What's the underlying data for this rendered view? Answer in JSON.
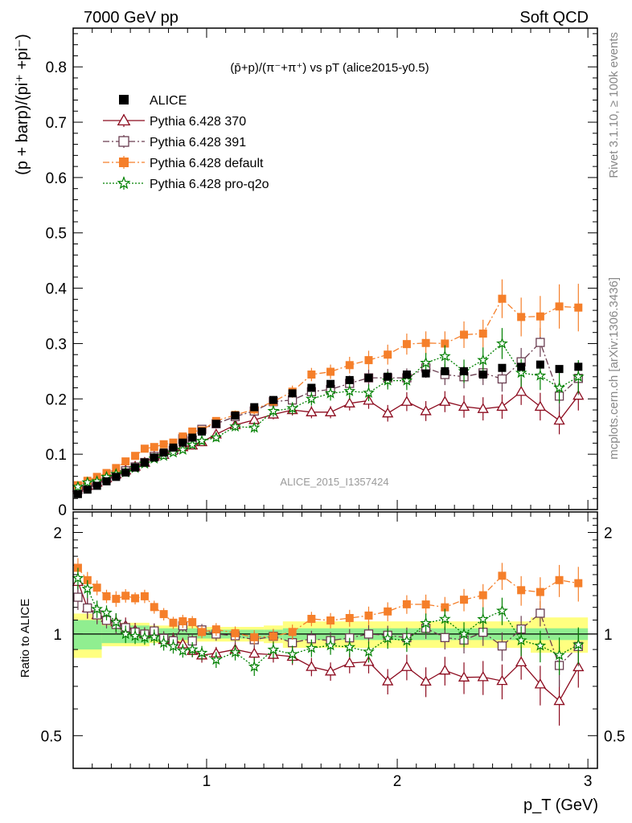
{
  "header": {
    "left": "7000 GeV pp",
    "right": "Soft QCD"
  },
  "side_labels": {
    "rivet": "Rivet 3.1.10, ≥ 100k events",
    "mcplots": "mcplots.cern.ch [arXiv:1306.3436]"
  },
  "chart_data": {
    "type": "scatter",
    "title": "(p̄+p)/(π⁻+π⁺) vs pT (alice2015-y0.5)",
    "watermark": "ALICE_2015_I1357424",
    "xlabel": "p_T (GeV)",
    "ylabel_main": "(p + barp)/(pi⁺ +pi⁻)",
    "ylabel_ratio": "Ratio to ALICE",
    "xlim": [
      0.3,
      3.05
    ],
    "ylim_main": [
      0,
      0.87
    ],
    "ylim_ratio": [
      0.4,
      2.3
    ],
    "x_ticks": [
      1,
      2,
      3
    ],
    "y_ticks_main": [
      0,
      0.1,
      0.2,
      0.3,
      0.4,
      0.5,
      0.6,
      0.7,
      0.8
    ],
    "y_ticks_ratio": [
      0.5,
      1,
      2
    ],
    "legend_position": "top-left",
    "x": [
      0.325,
      0.375,
      0.425,
      0.475,
      0.525,
      0.575,
      0.625,
      0.675,
      0.725,
      0.775,
      0.825,
      0.875,
      0.925,
      0.975,
      1.05,
      1.15,
      1.25,
      1.35,
      1.45,
      1.55,
      1.65,
      1.75,
      1.85,
      1.95,
      2.05,
      2.15,
      2.25,
      2.35,
      2.45,
      2.55,
      2.65,
      2.75,
      2.85,
      2.95
    ],
    "series": [
      {
        "name": "ALICE",
        "color": "#000000",
        "marker": "filled-square",
        "values": [
          0.028,
          0.036,
          0.043,
          0.051,
          0.059,
          0.067,
          0.076,
          0.085,
          0.094,
          0.103,
          0.112,
          0.121,
          0.13,
          0.141,
          0.155,
          0.17,
          0.185,
          0.198,
          0.21,
          0.22,
          0.227,
          0.234,
          0.238,
          0.24,
          0.244,
          0.246,
          0.25,
          0.25,
          0.244,
          0.256,
          0.258,
          0.262,
          0.254,
          0.258
        ]
      },
      {
        "name": "Pythia 6.428 370",
        "color": "#8c0a1e",
        "marker": "open-triangle",
        "line": "solid",
        "values": [
          0.04,
          0.043,
          0.049,
          0.057,
          0.064,
          0.071,
          0.078,
          0.085,
          0.096,
          0.099,
          0.108,
          0.113,
          0.116,
          0.122,
          0.136,
          0.153,
          0.162,
          0.172,
          0.18,
          0.176,
          0.176,
          0.192,
          0.197,
          0.174,
          0.195,
          0.178,
          0.195,
          0.186,
          0.182,
          0.186,
          0.213,
          0.186,
          0.161,
          0.206
        ],
        "err": [
          0.003,
          0.003,
          0.003,
          0.003,
          0.004,
          0.004,
          0.004,
          0.004,
          0.005,
          0.005,
          0.005,
          0.005,
          0.005,
          0.006,
          0.006,
          0.007,
          0.008,
          0.009,
          0.01,
          0.011,
          0.011,
          0.013,
          0.015,
          0.015,
          0.017,
          0.018,
          0.019,
          0.02,
          0.021,
          0.022,
          0.024,
          0.025,
          0.025,
          0.027
        ]
      },
      {
        "name": "Pythia 6.428 391",
        "color": "#6a3d50",
        "marker": "open-square",
        "line": "dash-dot",
        "values": [
          0.036,
          0.043,
          0.049,
          0.056,
          0.063,
          0.07,
          0.077,
          0.085,
          0.096,
          0.1,
          0.107,
          0.128,
          0.124,
          0.145,
          0.155,
          0.168,
          0.178,
          0.195,
          0.198,
          0.213,
          0.217,
          0.228,
          0.238,
          0.238,
          0.238,
          0.256,
          0.244,
          0.24,
          0.247,
          0.236,
          0.267,
          0.302,
          0.205,
          0.237
        ],
        "err": [
          0.003,
          0.003,
          0.003,
          0.003,
          0.004,
          0.004,
          0.004,
          0.004,
          0.005,
          0.005,
          0.005,
          0.005,
          0.006,
          0.006,
          0.007,
          0.008,
          0.009,
          0.01,
          0.011,
          0.012,
          0.013,
          0.014,
          0.015,
          0.016,
          0.017,
          0.018,
          0.019,
          0.021,
          0.022,
          0.023,
          0.025,
          0.026,
          0.028,
          0.03
        ]
      },
      {
        "name": "Pythia 6.428 default",
        "color": "#f57f2a",
        "marker": "filled-square",
        "line": "dash-dot",
        "values": [
          0.044,
          0.052,
          0.059,
          0.066,
          0.075,
          0.087,
          0.097,
          0.11,
          0.113,
          0.118,
          0.121,
          0.132,
          0.141,
          0.143,
          0.16,
          0.171,
          0.181,
          0.195,
          0.213,
          0.244,
          0.249,
          0.261,
          0.27,
          0.28,
          0.299,
          0.301,
          0.3,
          0.316,
          0.318,
          0.381,
          0.348,
          0.349,
          0.367,
          0.365
        ],
        "err": [
          0.003,
          0.003,
          0.003,
          0.003,
          0.004,
          0.004,
          0.004,
          0.005,
          0.005,
          0.005,
          0.005,
          0.006,
          0.006,
          0.006,
          0.007,
          0.008,
          0.009,
          0.01,
          0.011,
          0.012,
          0.013,
          0.015,
          0.017,
          0.018,
          0.019,
          0.021,
          0.022,
          0.024,
          0.025,
          0.035,
          0.035,
          0.037,
          0.04,
          0.043
        ]
      },
      {
        "name": "Pythia 6.428 pro-q2o",
        "color": "#008000",
        "marker": "open-star",
        "line": "dotted",
        "values": [
          0.041,
          0.049,
          0.051,
          0.059,
          0.064,
          0.067,
          0.075,
          0.083,
          0.092,
          0.097,
          0.103,
          0.108,
          0.117,
          0.124,
          0.13,
          0.15,
          0.148,
          0.178,
          0.183,
          0.2,
          0.21,
          0.214,
          0.211,
          0.233,
          0.233,
          0.265,
          0.277,
          0.25,
          0.27,
          0.3,
          0.247,
          0.242,
          0.22,
          0.24
        ],
        "err": [
          0.003,
          0.003,
          0.003,
          0.003,
          0.004,
          0.004,
          0.004,
          0.004,
          0.005,
          0.005,
          0.005,
          0.005,
          0.006,
          0.006,
          0.007,
          0.008,
          0.009,
          0.01,
          0.011,
          0.012,
          0.013,
          0.014,
          0.015,
          0.016,
          0.017,
          0.018,
          0.02,
          0.021,
          0.023,
          0.028,
          0.025,
          0.026,
          0.028,
          0.03
        ]
      }
    ],
    "band": {
      "x_edges": [
        0.3,
        0.45,
        0.7,
        0.95,
        1.3,
        1.4,
        2.7,
        3.0
      ],
      "stat_half": [
        0.1,
        0.06,
        0.04,
        0.03,
        0.03,
        0.04,
        0.04,
        0.06
      ],
      "syst_half": [
        0.15,
        0.08,
        0.06,
        0.05,
        0.06,
        0.09,
        0.12,
        0.17
      ],
      "stat_color": "#90ee90",
      "syst_color": "#ffff80"
    }
  }
}
